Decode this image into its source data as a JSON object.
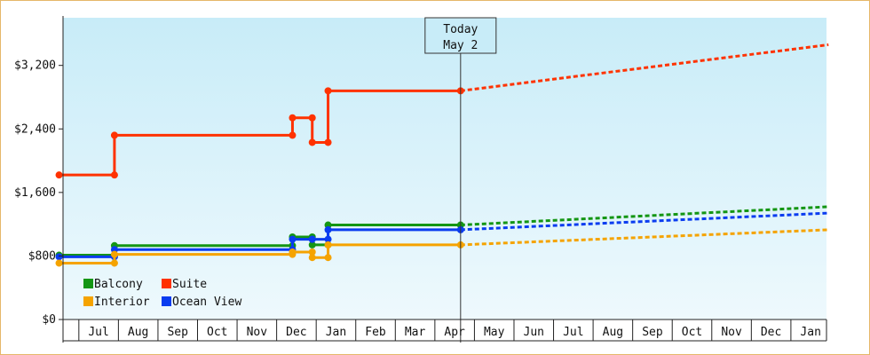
{
  "colors": {
    "balcony": "#149614",
    "suite": "#ff3200",
    "interior": "#f5a300",
    "ocean_view": "#0a3cf0",
    "frame_border": "#e6b76a",
    "bg_top": "#c8ecf8",
    "bg_bottom": "#eef9fd"
  },
  "today_marker": {
    "line1": "Today",
    "line2": "May 2",
    "x": 10.05
  },
  "chart_data": {
    "type": "line",
    "title": "",
    "xlabel": "",
    "ylabel": "",
    "ylim": [
      0,
      3800
    ],
    "xlim": [
      0,
      19.3
    ],
    "grid": false,
    "legend_position": "bottom-left",
    "y_ticks": [
      {
        "value": 0,
        "label": "$0"
      },
      {
        "value": 800,
        "label": "$800"
      },
      {
        "value": 1600,
        "label": "$1,600"
      },
      {
        "value": 2400,
        "label": "$2,400"
      },
      {
        "value": 3200,
        "label": "$3,200"
      }
    ],
    "x_months": [
      "Jul",
      "Aug",
      "Sep",
      "Oct",
      "Nov",
      "Dec",
      "Jan",
      "Feb",
      "Mar",
      "Apr",
      "May",
      "Jun",
      "Jul",
      "Aug",
      "Sep",
      "Oct",
      "Nov",
      "Dec",
      "Jan"
    ],
    "x_month_boundaries": [
      0.4,
      1.4,
      2.4,
      3.4,
      4.4,
      5.4,
      6.4,
      7.4,
      8.4,
      9.4,
      10.4,
      11.4,
      12.4,
      13.4,
      14.4,
      15.4,
      16.4,
      17.4,
      18.4,
      19.4
    ],
    "legend": [
      {
        "key": "balcony",
        "label": "Balcony"
      },
      {
        "key": "suite",
        "label": "Suite"
      },
      {
        "key": "interior",
        "label": "Interior"
      },
      {
        "key": "ocean_view",
        "label": "Ocean View"
      }
    ],
    "series": [
      {
        "name": "Suite",
        "key": "suite",
        "points": [
          [
            -0.1,
            1820
          ],
          [
            1.3,
            1820
          ],
          [
            1.3,
            2320
          ],
          [
            5.8,
            2320
          ],
          [
            5.8,
            2540
          ],
          [
            6.3,
            2540
          ],
          [
            6.3,
            2230
          ],
          [
            6.7,
            2230
          ],
          [
            6.7,
            2880
          ],
          [
            10.05,
            2880
          ]
        ],
        "forecast": [
          [
            10.05,
            2880
          ],
          [
            19.35,
            3460
          ]
        ]
      },
      {
        "name": "Balcony",
        "key": "balcony",
        "points": [
          [
            -0.1,
            810
          ],
          [
            1.3,
            810
          ],
          [
            1.3,
            930
          ],
          [
            5.8,
            930
          ],
          [
            5.8,
            1040
          ],
          [
            6.3,
            1040
          ],
          [
            6.3,
            940
          ],
          [
            6.7,
            940
          ],
          [
            6.7,
            1190
          ],
          [
            10.05,
            1190
          ]
        ],
        "forecast": [
          [
            10.05,
            1190
          ],
          [
            19.35,
            1420
          ]
        ]
      },
      {
        "name": "Ocean View",
        "key": "ocean_view",
        "points": [
          [
            -0.1,
            790
          ],
          [
            1.3,
            790
          ],
          [
            1.3,
            880
          ],
          [
            5.8,
            880
          ],
          [
            5.8,
            1010
          ],
          [
            6.3,
            1010
          ],
          [
            6.3,
            1010
          ],
          [
            6.7,
            1010
          ],
          [
            6.7,
            1130
          ],
          [
            10.05,
            1130
          ]
        ],
        "forecast": [
          [
            10.05,
            1130
          ],
          [
            19.35,
            1340
          ]
        ]
      },
      {
        "name": "Interior",
        "key": "interior",
        "points": [
          [
            -0.1,
            710
          ],
          [
            1.3,
            710
          ],
          [
            1.3,
            820
          ],
          [
            5.8,
            820
          ],
          [
            5.8,
            850
          ],
          [
            6.3,
            850
          ],
          [
            6.3,
            780
          ],
          [
            6.7,
            780
          ],
          [
            6.7,
            940
          ],
          [
            10.05,
            940
          ]
        ],
        "forecast": [
          [
            10.05,
            940
          ],
          [
            19.35,
            1130
          ]
        ]
      }
    ]
  }
}
